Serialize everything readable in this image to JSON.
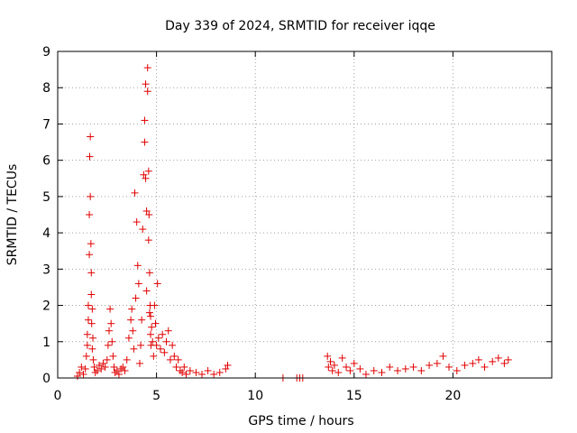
{
  "chart_data": {
    "type": "scatter",
    "title": "Day 339 of 2024, SRMTID for receiver iqqe",
    "xlabel": "GPS time / hours",
    "ylabel": "SRMTID / TECUs",
    "xlim": [
      0,
      25
    ],
    "ylim": [
      0,
      9
    ],
    "xticks": [
      "0",
      "5",
      "10",
      "15",
      "20"
    ],
    "xtick_values": [
      0,
      5,
      10,
      15,
      20
    ],
    "yticks": [
      "0",
      "1",
      "2",
      "3",
      "4",
      "5",
      "6",
      "7",
      "8",
      "9"
    ],
    "ytick_values": [
      0,
      1,
      2,
      3,
      4,
      5,
      6,
      7,
      8,
      9
    ],
    "grid": true,
    "marker": "plus",
    "color": "#e00000",
    "series": [
      {
        "name": "SRMTID",
        "x": [
          1.0,
          1.1,
          1.2,
          1.3,
          1.4,
          1.45,
          1.5,
          1.5,
          1.55,
          1.55,
          1.6,
          1.6,
          1.62,
          1.65,
          1.65,
          1.68,
          1.7,
          1.7,
          1.72,
          1.75,
          1.75,
          1.78,
          1.8,
          1.85,
          1.9,
          2.0,
          2.1,
          2.2,
          2.3,
          2.4,
          2.5,
          2.55,
          2.6,
          2.65,
          2.7,
          2.75,
          2.8,
          2.85,
          2.9,
          3.0,
          3.1,
          3.2,
          3.3,
          3.4,
          3.5,
          3.6,
          3.7,
          3.75,
          3.8,
          3.85,
          3.9,
          3.95,
          4.0,
          4.05,
          4.1,
          4.15,
          4.2,
          4.25,
          4.3,
          4.35,
          4.4,
          4.4,
          4.45,
          4.45,
          4.5,
          4.5,
          4.55,
          4.55,
          4.6,
          4.6,
          4.62,
          4.65,
          4.65,
          4.68,
          4.7,
          4.7,
          4.72,
          4.75,
          4.8,
          4.85,
          4.9,
          4.95,
          5.0,
          5.05,
          5.1,
          5.2,
          5.3,
          5.4,
          5.5,
          5.6,
          5.7,
          5.8,
          5.9,
          6.0,
          6.1,
          6.2,
          6.3,
          6.4,
          6.5,
          6.7,
          7.0,
          7.3,
          7.6,
          7.9,
          8.2,
          8.5,
          8.6,
          11.4,
          12.1,
          12.25,
          12.4,
          13.65,
          13.7,
          13.8,
          13.9,
          14.0,
          14.2,
          14.4,
          14.6,
          14.8,
          15.0,
          15.3,
          15.6,
          16.0,
          16.4,
          16.8,
          17.2,
          17.6,
          18.0,
          18.4,
          18.8,
          19.2,
          19.5,
          19.8,
          20.2,
          20.6,
          21.0,
          21.3,
          21.6,
          22.0,
          22.3,
          22.6,
          22.8
        ],
        "y": [
          0.05,
          0.15,
          0.3,
          0.1,
          0.25,
          0.6,
          0.9,
          1.2,
          1.6,
          2.0,
          3.4,
          4.5,
          6.1,
          6.65,
          5.0,
          3.7,
          2.9,
          2.3,
          1.5,
          0.8,
          1.9,
          1.1,
          0.5,
          0.3,
          0.15,
          0.2,
          0.35,
          0.25,
          0.4,
          0.3,
          0.5,
          0.9,
          1.3,
          1.9,
          1.5,
          1.0,
          0.6,
          0.3,
          0.15,
          0.2,
          0.1,
          0.25,
          0.3,
          0.2,
          0.5,
          1.1,
          1.6,
          1.9,
          1.3,
          0.8,
          5.1,
          2.2,
          4.3,
          3.1,
          2.6,
          0.4,
          0.9,
          1.6,
          4.1,
          5.6,
          6.5,
          7.1,
          8.1,
          5.5,
          4.6,
          2.4,
          8.55,
          7.9,
          5.7,
          3.8,
          4.5,
          2.9,
          1.8,
          2.0,
          1.2,
          1.7,
          0.9,
          1.4,
          1.0,
          0.6,
          2.0,
          1.5,
          0.9,
          2.6,
          1.1,
          0.8,
          1.2,
          0.7,
          1.0,
          1.3,
          0.5,
          0.9,
          0.6,
          0.3,
          0.5,
          0.2,
          0.15,
          0.3,
          0.1,
          0.2,
          0.15,
          0.1,
          0.2,
          0.1,
          0.15,
          0.25,
          0.35,
          0.0,
          0.0,
          0.0,
          0.0,
          0.6,
          0.3,
          0.45,
          0.2,
          0.35,
          0.15,
          0.55,
          0.3,
          0.2,
          0.4,
          0.25,
          0.1,
          0.2,
          0.15,
          0.3,
          0.2,
          0.25,
          0.3,
          0.2,
          0.35,
          0.4,
          0.6,
          0.3,
          0.2,
          0.35,
          0.4,
          0.5,
          0.3,
          0.45,
          0.55,
          0.4,
          0.5
        ]
      }
    ]
  }
}
